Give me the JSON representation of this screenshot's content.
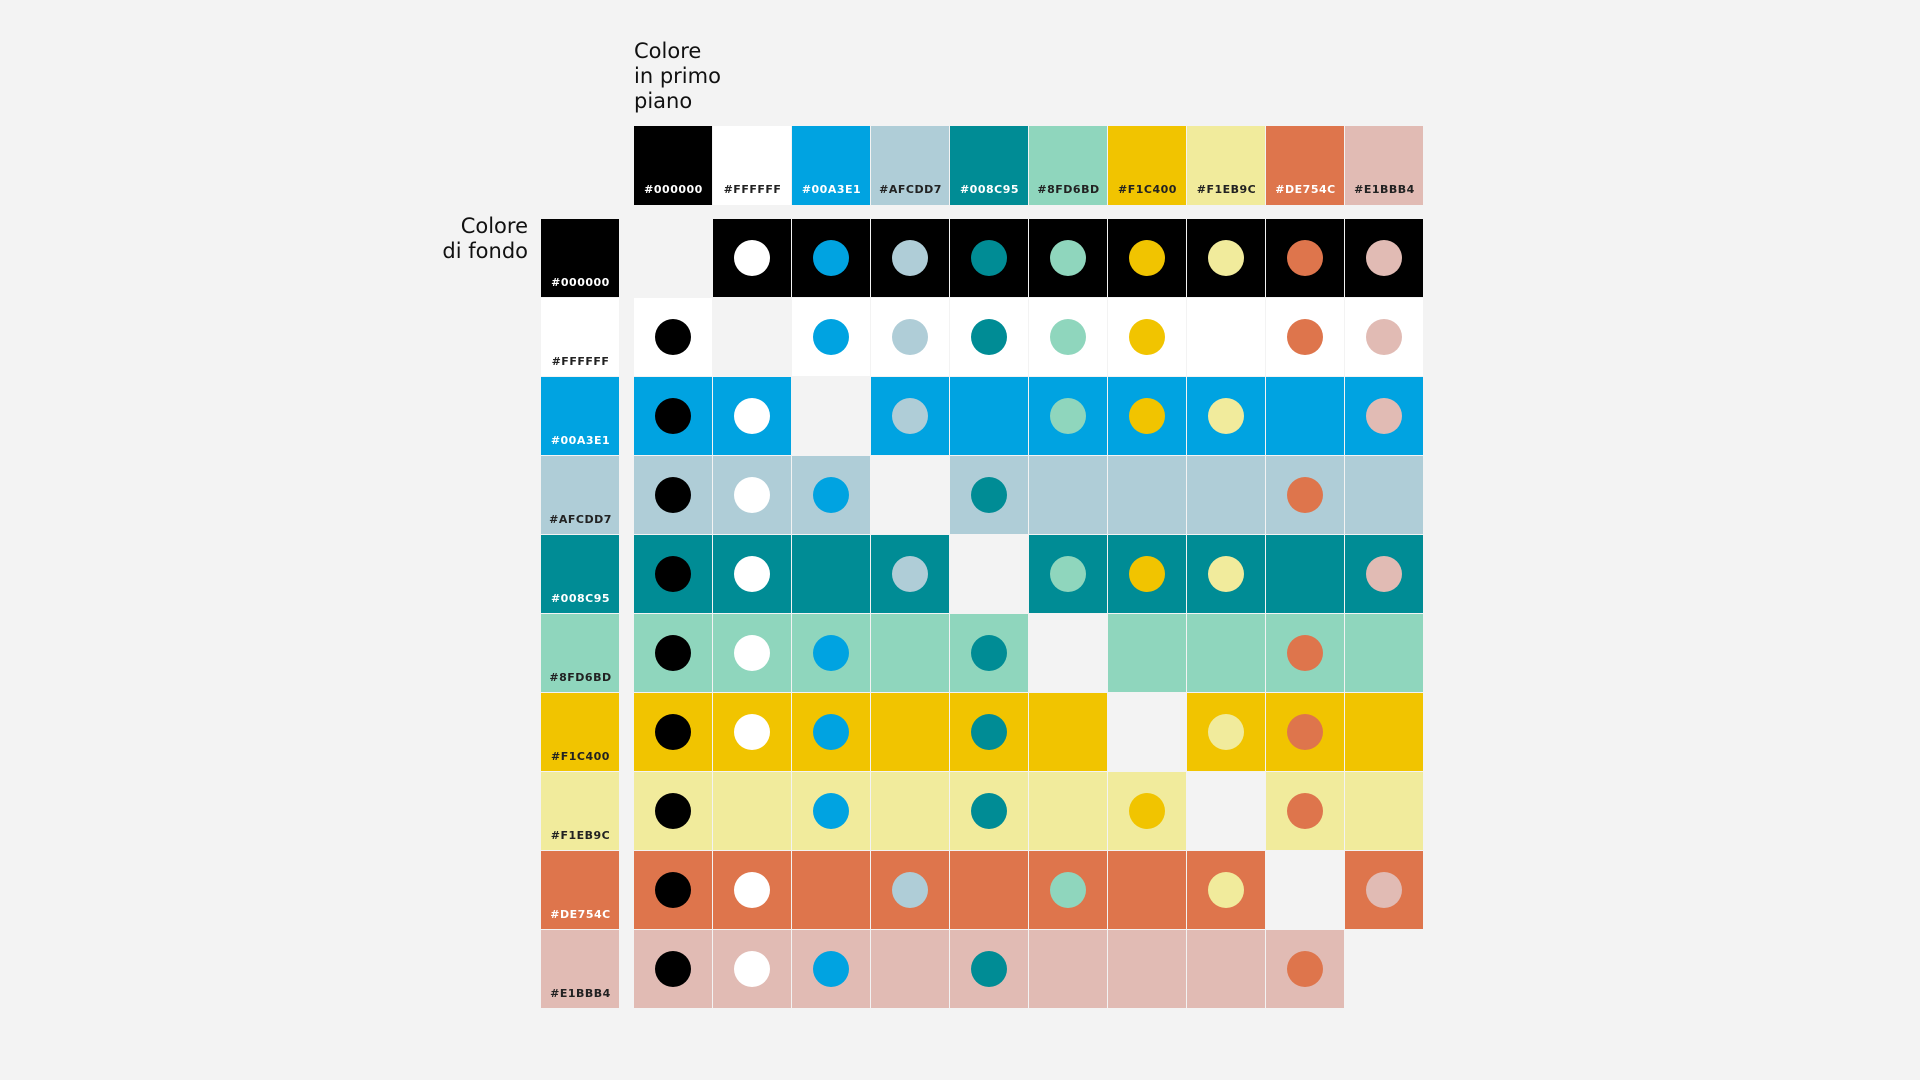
{
  "foreground": {
    "title": [
      "Colore",
      "in primo",
      "piano"
    ],
    "colors": [
      "#000000",
      "#FFFFFF",
      "#00A3E1",
      "#AFCDD7",
      "#008C95",
      "#8FD6BD",
      "#F1C400",
      "#F1EB9C",
      "#DE754C",
      "#E1BBB4"
    ]
  },
  "background": {
    "title": [
      "Colore",
      "di fondo"
    ],
    "colors": [
      "#000000",
      "#FFFFFF",
      "#00A3E1",
      "#AFCDD7",
      "#008C95",
      "#8FD6BD",
      "#F1C400",
      "#F1EB9C",
      "#DE754C",
      "#E1BBB4"
    ]
  },
  "matrix": [
    [
      null,
      true,
      true,
      true,
      true,
      true,
      true,
      true,
      true,
      true
    ],
    [
      true,
      null,
      true,
      true,
      true,
      true,
      true,
      false,
      true,
      true
    ],
    [
      true,
      true,
      null,
      true,
      false,
      true,
      true,
      true,
      false,
      true
    ],
    [
      true,
      true,
      true,
      null,
      true,
      false,
      false,
      false,
      true,
      false
    ],
    [
      true,
      true,
      false,
      true,
      null,
      true,
      true,
      true,
      false,
      true
    ],
    [
      true,
      true,
      true,
      false,
      true,
      null,
      false,
      false,
      true,
      false
    ],
    [
      true,
      true,
      true,
      false,
      true,
      false,
      null,
      true,
      true,
      false
    ],
    [
      true,
      false,
      true,
      false,
      true,
      false,
      true,
      null,
      true,
      false
    ],
    [
      true,
      true,
      false,
      true,
      false,
      true,
      false,
      true,
      null,
      true
    ],
    [
      true,
      true,
      true,
      false,
      true,
      false,
      false,
      false,
      true,
      null
    ]
  ]
}
